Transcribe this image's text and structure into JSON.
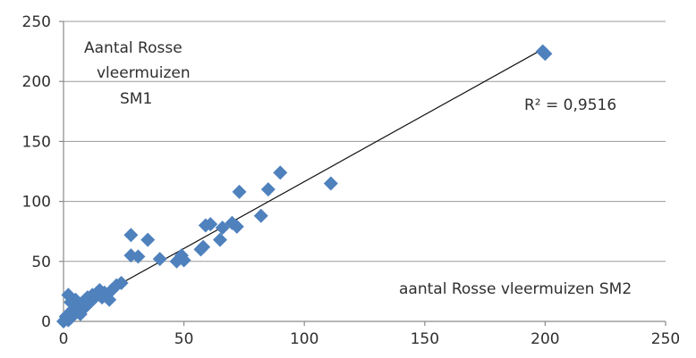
{
  "chart_data": {
    "type": "scatter",
    "title": "",
    "ylabel_lines": [
      "Aantal Rosse",
      "vleermuizen",
      "SM1"
    ],
    "xlabel": "aantal Rosse vleermuizen SM2",
    "r2_label": "R² = 0,9516",
    "xlim": [
      0,
      250
    ],
    "ylim": [
      0,
      250
    ],
    "xticks": [
      "0",
      "50",
      "100",
      "150",
      "200",
      "250"
    ],
    "yticks": [
      "0",
      "50",
      "100",
      "150",
      "200",
      "250"
    ],
    "grid": true,
    "marker_color": "#4F81BD",
    "trendline": {
      "x": [
        0,
        200
      ],
      "y": [
        5,
        228
      ]
    },
    "points": [
      {
        "x": 0,
        "y": 0
      },
      {
        "x": 1,
        "y": 2
      },
      {
        "x": 1,
        "y": 4
      },
      {
        "x": 2,
        "y": 1
      },
      {
        "x": 2,
        "y": 6
      },
      {
        "x": 3,
        "y": 3
      },
      {
        "x": 3,
        "y": 8
      },
      {
        "x": 4,
        "y": 5
      },
      {
        "x": 4,
        "y": 10
      },
      {
        "x": 5,
        "y": 7
      },
      {
        "x": 5,
        "y": 12
      },
      {
        "x": 6,
        "y": 9
      },
      {
        "x": 6,
        "y": 14
      },
      {
        "x": 7,
        "y": 11
      },
      {
        "x": 7,
        "y": 6
      },
      {
        "x": 8,
        "y": 13
      },
      {
        "x": 8,
        "y": 16
      },
      {
        "x": 9,
        "y": 12
      },
      {
        "x": 9,
        "y": 18
      },
      {
        "x": 10,
        "y": 14
      },
      {
        "x": 10,
        "y": 20
      },
      {
        "x": 11,
        "y": 16
      },
      {
        "x": 12,
        "y": 18
      },
      {
        "x": 12,
        "y": 22
      },
      {
        "x": 13,
        "y": 20
      },
      {
        "x": 14,
        "y": 24
      },
      {
        "x": 15,
        "y": 22
      },
      {
        "x": 15,
        "y": 26
      },
      {
        "x": 16,
        "y": 20
      },
      {
        "x": 17,
        "y": 24
      },
      {
        "x": 18,
        "y": 22
      },
      {
        "x": 19,
        "y": 18
      },
      {
        "x": 20,
        "y": 26
      },
      {
        "x": 22,
        "y": 30
      },
      {
        "x": 24,
        "y": 32
      },
      {
        "x": 2,
        "y": 22
      },
      {
        "x": 3,
        "y": 16
      },
      {
        "x": 5,
        "y": 18
      },
      {
        "x": 28,
        "y": 72
      },
      {
        "x": 28,
        "y": 55
      },
      {
        "x": 31,
        "y": 54
      },
      {
        "x": 35,
        "y": 68
      },
      {
        "x": 40,
        "y": 52
      },
      {
        "x": 47,
        "y": 50
      },
      {
        "x": 49,
        "y": 55
      },
      {
        "x": 50,
        "y": 51
      },
      {
        "x": 57,
        "y": 60
      },
      {
        "x": 58,
        "y": 62
      },
      {
        "x": 59,
        "y": 80
      },
      {
        "x": 61,
        "y": 81
      },
      {
        "x": 65,
        "y": 68
      },
      {
        "x": 66,
        "y": 78
      },
      {
        "x": 70,
        "y": 82
      },
      {
        "x": 72,
        "y": 79
      },
      {
        "x": 73,
        "y": 108
      },
      {
        "x": 82,
        "y": 88
      },
      {
        "x": 85,
        "y": 110
      },
      {
        "x": 90,
        "y": 124
      },
      {
        "x": 111,
        "y": 115
      },
      {
        "x": 199,
        "y": 225
      },
      {
        "x": 200,
        "y": 223
      }
    ]
  }
}
